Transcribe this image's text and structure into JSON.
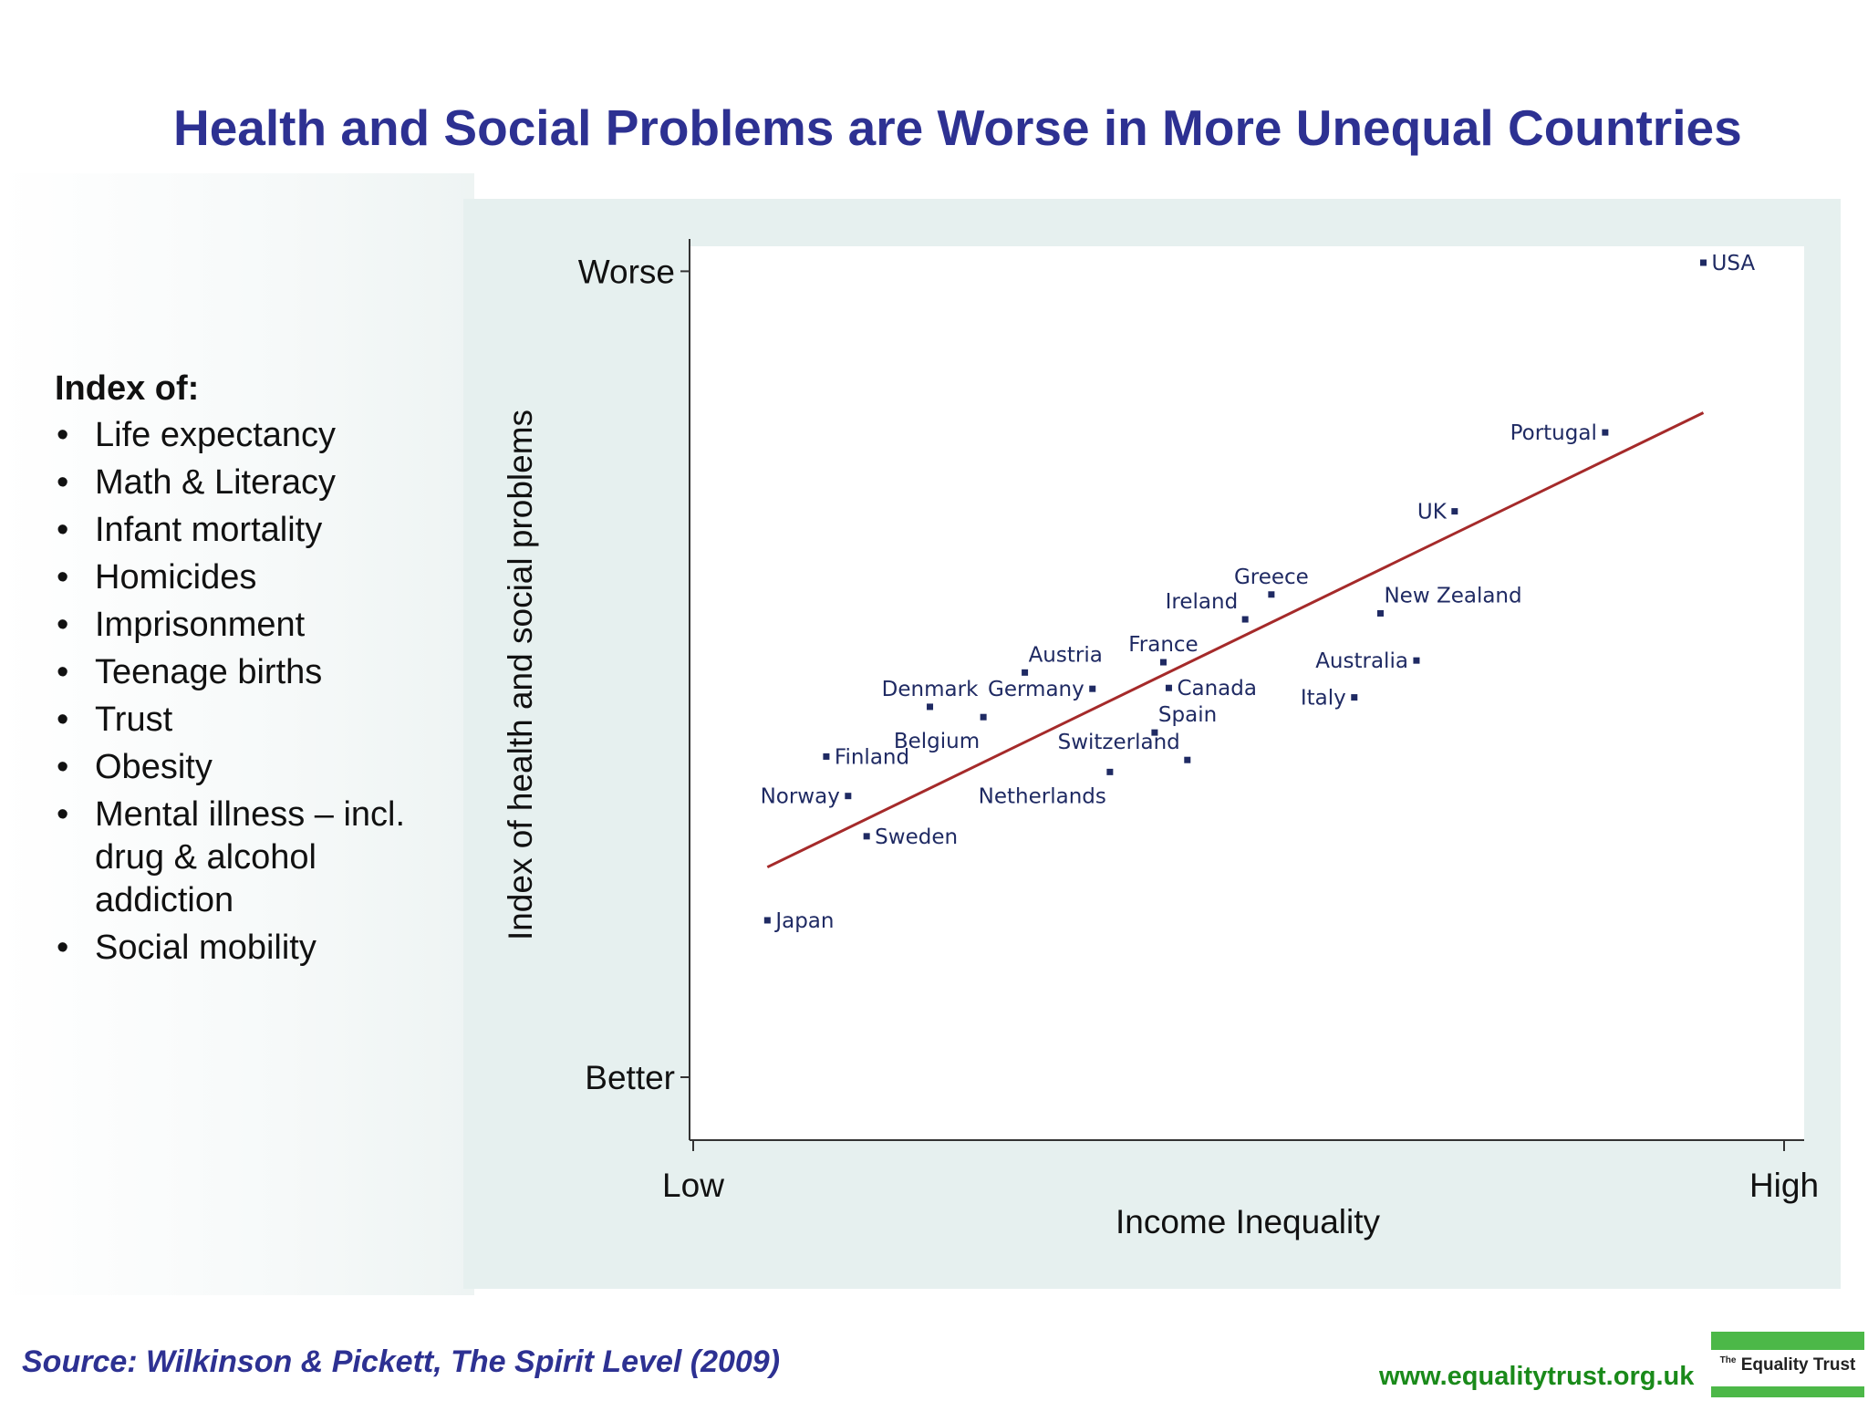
{
  "page": {
    "title": "Health and Social Problems are Worse in More Unequal Countries",
    "source": "Source: Wilkinson & Pickett, The Spirit Level (2009)",
    "website": "www.equalitytrust.org.uk",
    "logo_small": "The",
    "logo_text": "Equality Trust"
  },
  "legend": {
    "heading": "Index of:",
    "items": [
      "Life expectancy",
      "Math & Literacy",
      "Infant mortality",
      "Homicides",
      "Imprisonment",
      "Teenage births",
      "Trust",
      "Obesity",
      "Mental illness – incl. drug & alcohol addiction",
      "Social mobility"
    ]
  },
  "colors": {
    "title": "#2d3192",
    "points": "#1f2a63",
    "trend_line": "#a52a2a",
    "panel": "#e6f0ef",
    "website": "#1a8a1a",
    "logo": "#4cb848"
  },
  "chart_data": {
    "type": "scatter",
    "title": "",
    "xlabel": "Income Inequality",
    "ylabel": "Index of health and social problems",
    "xlim": [
      0,
      100
    ],
    "ylim": [
      0,
      100
    ],
    "x_ticks": [
      {
        "value": 0,
        "label": "Low"
      },
      {
        "value": 100,
        "label": "High"
      }
    ],
    "y_ticks": [
      {
        "value": 5,
        "label": "Better"
      },
      {
        "value": 99,
        "label": "Worse"
      }
    ],
    "points": [
      {
        "label": "USA",
        "x": 92.6,
        "y": 100,
        "label_pos": "right"
      },
      {
        "label": "Portugal",
        "x": 83.6,
        "y": 80.2,
        "label_pos": "left"
      },
      {
        "label": "UK",
        "x": 69.8,
        "y": 71.0,
        "label_pos": "left"
      },
      {
        "label": "Greece",
        "x": 53.0,
        "y": 61.3,
        "label_pos": "top"
      },
      {
        "label": "Ireland",
        "x": 50.6,
        "y": 58.4,
        "label_pos": "top-left"
      },
      {
        "label": "New Zealand",
        "x": 63.0,
        "y": 59.1,
        "label_pos": "top-right"
      },
      {
        "label": "Australia",
        "x": 66.3,
        "y": 53.6,
        "label_pos": "left"
      },
      {
        "label": "France",
        "x": 43.1,
        "y": 53.4,
        "label_pos": "top"
      },
      {
        "label": "Italy",
        "x": 60.6,
        "y": 49.3,
        "label_pos": "left"
      },
      {
        "label": "Austria",
        "x": 30.4,
        "y": 52.2,
        "label_pos": "top-right"
      },
      {
        "label": "Germany",
        "x": 36.6,
        "y": 50.3,
        "label_pos": "left"
      },
      {
        "label": "Canada",
        "x": 43.6,
        "y": 50.4,
        "label_pos": "right"
      },
      {
        "label": "Denmark",
        "x": 21.7,
        "y": 48.2,
        "label_pos": "top"
      },
      {
        "label": "Belgium",
        "x": 26.6,
        "y": 47.0,
        "label_pos": "bottom-left"
      },
      {
        "label": "Spain",
        "x": 42.3,
        "y": 45.2,
        "label_pos": "top-right"
      },
      {
        "label": "Switzerland",
        "x": 45.3,
        "y": 42.0,
        "label_pos": "top-left"
      },
      {
        "label": "Netherlands",
        "x": 38.2,
        "y": 40.6,
        "label_pos": "bottom-left"
      },
      {
        "label": "Finland",
        "x": 12.2,
        "y": 42.4,
        "label_pos": "right"
      },
      {
        "label": "Norway",
        "x": 14.2,
        "y": 37.8,
        "label_pos": "left"
      },
      {
        "label": "Sweden",
        "x": 15.9,
        "y": 33.1,
        "label_pos": "right"
      },
      {
        "label": "Japan",
        "x": 6.8,
        "y": 23.3,
        "label_pos": "right"
      }
    ],
    "trend_line": {
      "x": [
        6.8,
        92.6
      ],
      "y": [
        29.5,
        82.5
      ]
    },
    "grid": false,
    "legend": "none"
  }
}
